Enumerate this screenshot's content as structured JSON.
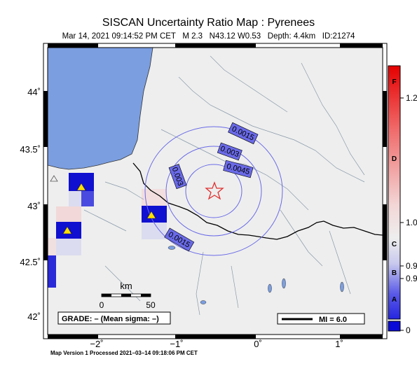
{
  "title": "SISCAN Uncertainty Ratio Map : Pyrenees",
  "subtitle": "Mar 14, 2021 09:14:52 PM CET   M 2.3   N43.12 W0.53   Depth: 4.4km   ID:21274",
  "footer": "Map Version 1 Processed 2021–03–14 09:18:06 PM CET",
  "map": {
    "lat_ticks": [
      "44˚",
      "43.5˚",
      "43˚",
      "42.5˚",
      "42˚"
    ],
    "lon_ticks": [
      "−2˚",
      "−1˚",
      "0˚",
      "1˚"
    ],
    "epicenter": {
      "lat": 43.12,
      "lon": -0.53
    },
    "contour_labels": [
      "0.0015",
      "0.003",
      "0.0045",
      "0.003",
      "0.0015"
    ],
    "scale_bar": {
      "unit": "km",
      "start": "0",
      "end": "50"
    },
    "grade_box": "GRADE: – (Mean sigma: –)",
    "mi_legend": "MI = 6.0"
  },
  "colorbar": {
    "letters": [
      "F",
      "D",
      "C",
      "B",
      "A"
    ],
    "values": [
      "1.2",
      "1.0",
      "0.9",
      "0.9",
      "0"
    ]
  },
  "colors": {
    "ocean": "#7b9ee0",
    "land": "#eeeeee",
    "contour": "#6a6ae8",
    "epicenter": "#e03030"
  }
}
